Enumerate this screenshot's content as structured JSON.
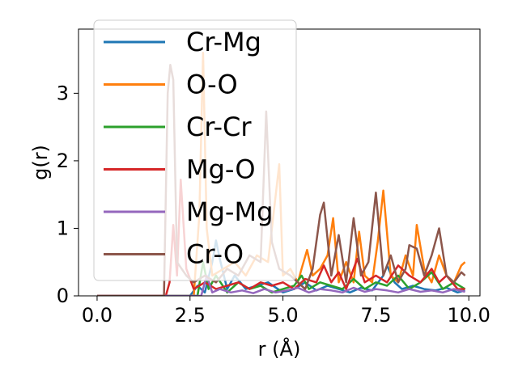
{
  "chart_data": {
    "type": "line",
    "title": "",
    "xlabel": "r (Å)",
    "ylabel": "g(r)",
    "xlim": [
      -0.5,
      10.3
    ],
    "ylim": [
      0,
      3.95
    ],
    "xticks": [
      0.0,
      2.5,
      5.0,
      7.5,
      10.0
    ],
    "xtick_labels": [
      "0.0",
      "2.5",
      "5.0",
      "7.5",
      "10.0"
    ],
    "yticks": [
      0,
      1,
      2,
      3
    ],
    "ytick_labels": [
      "0",
      "1",
      "2",
      "3"
    ],
    "grid": false,
    "legend_position": "upper-left",
    "series": [
      {
        "name": "Cr-Mg",
        "color": "#1f77b4",
        "x": [
          0.0,
          2.5,
          2.7,
          2.9,
          3.1,
          3.2,
          3.3,
          3.5,
          3.7,
          4.0,
          4.3,
          4.6,
          5.0,
          5.3,
          5.6,
          5.9,
          6.2,
          6.5,
          6.8,
          7.1,
          7.4,
          7.7,
          7.8,
          8.0,
          8.2,
          8.5,
          8.8,
          9.1,
          9.4,
          9.7,
          9.9
        ],
        "y": [
          0,
          0,
          0.15,
          0.05,
          0.5,
          0.82,
          0.55,
          0.1,
          0.3,
          0.1,
          0.15,
          0.2,
          0.05,
          0.1,
          0.2,
          0.08,
          0.15,
          0.1,
          0.05,
          0.12,
          0.08,
          0.3,
          0.45,
          0.2,
          0.1,
          0.15,
          0.1,
          0.08,
          0.12,
          0.05,
          0.08
        ]
      },
      {
        "name": "O-O",
        "color": "#ff7f0e",
        "x": [
          0.0,
          2.6,
          2.75,
          2.85,
          2.95,
          3.1,
          3.4,
          3.7,
          4.0,
          4.3,
          4.6,
          4.9,
          5.0,
          5.2,
          5.4,
          5.5,
          5.65,
          5.8,
          6.0,
          6.2,
          6.35,
          6.5,
          6.7,
          6.9,
          7.05,
          7.2,
          7.4,
          7.55,
          7.7,
          7.9,
          8.1,
          8.3,
          8.5,
          8.6,
          8.8,
          9.0,
          9.2,
          9.4,
          9.6,
          9.8,
          9.9
        ],
        "y": [
          0,
          0,
          1.2,
          3.6,
          1.0,
          0.3,
          0.4,
          0.5,
          0.3,
          0.6,
          0.5,
          1.95,
          0.3,
          0.4,
          0.2,
          0.4,
          0.68,
          0.3,
          0.4,
          0.6,
          1.15,
          0.2,
          0.5,
          0.2,
          0.95,
          0.3,
          0.2,
          0.8,
          1.56,
          0.3,
          0.2,
          0.6,
          0.3,
          1.05,
          0.4,
          0.2,
          0.6,
          0.3,
          0.2,
          0.45,
          0.5
        ]
      },
      {
        "name": "Cr-Cr",
        "color": "#2ca02c",
        "x": [
          0.0,
          2.7,
          2.85,
          3.0,
          3.2,
          3.5,
          3.8,
          4.1,
          4.4,
          4.7,
          5.0,
          5.3,
          5.5,
          5.7,
          6.0,
          6.3,
          6.6,
          6.9,
          7.2,
          7.5,
          7.8,
          8.1,
          8.4,
          8.7,
          9.0,
          9.3,
          9.6,
          9.9
        ],
        "y": [
          0,
          0,
          0.5,
          0.1,
          0.3,
          0.05,
          0.2,
          0.1,
          0.15,
          0.05,
          0.1,
          0.15,
          0.3,
          0.1,
          0.2,
          0.15,
          0.1,
          0.25,
          0.1,
          0.2,
          0.15,
          0.3,
          0.1,
          0.2,
          0.35,
          0.1,
          0.2,
          0.1
        ]
      },
      {
        "name": "Mg-O",
        "color": "#d62728",
        "x": [
          0.0,
          1.85,
          1.95,
          2.05,
          2.15,
          2.25,
          2.4,
          2.6,
          2.9,
          3.2,
          3.5,
          3.8,
          4.1,
          4.4,
          4.7,
          5.0,
          5.3,
          5.6,
          5.9,
          6.1,
          6.3,
          6.5,
          6.7,
          6.9,
          7.0,
          7.2,
          7.5,
          7.8,
          8.1,
          8.4,
          8.7,
          9.0,
          9.2,
          9.4,
          9.7,
          9.9
        ],
        "y": [
          0,
          0,
          0.2,
          1.05,
          0.3,
          1.72,
          0.4,
          0.1,
          0.2,
          0.1,
          0.15,
          0.2,
          0.1,
          0.2,
          0.15,
          0.2,
          0.1,
          0.25,
          0.2,
          0.45,
          0.2,
          0.35,
          0.1,
          0.4,
          0.55,
          0.2,
          0.3,
          0.2,
          0.45,
          0.3,
          0.2,
          0.4,
          0.2,
          0.3,
          0.1,
          0.1
        ]
      },
      {
        "name": "Mg-Mg",
        "color": "#9467bd",
        "x": [
          0.0,
          2.8,
          2.95,
          3.1,
          3.3,
          3.6,
          3.9,
          4.2,
          4.5,
          4.8,
          5.1,
          5.4,
          5.7,
          6.0,
          6.3,
          6.6,
          6.9,
          7.2,
          7.5,
          7.8,
          8.1,
          8.4,
          8.7,
          9.0,
          9.3,
          9.6,
          9.9
        ],
        "y": [
          0,
          0,
          0.3,
          0.05,
          0.1,
          0.05,
          0.08,
          0.04,
          0.1,
          0.05,
          0.08,
          0.12,
          0.05,
          0.1,
          0.08,
          0.05,
          0.12,
          0.06,
          0.1,
          0.08,
          0.05,
          0.1,
          0.06,
          0.08,
          0.05,
          0.1,
          0.06
        ]
      },
      {
        "name": "Cr-O",
        "color": "#8c564b",
        "x": [
          0.0,
          1.8,
          1.9,
          1.97,
          2.05,
          2.15,
          2.4,
          2.6,
          2.9,
          3.2,
          3.5,
          3.8,
          4.1,
          4.4,
          4.55,
          4.7,
          4.9,
          5.2,
          5.4,
          5.6,
          5.8,
          6.0,
          6.1,
          6.3,
          6.5,
          6.7,
          6.9,
          7.1,
          7.3,
          7.5,
          7.7,
          7.9,
          8.1,
          8.3,
          8.4,
          8.6,
          8.8,
          9.0,
          9.2,
          9.4,
          9.6,
          9.8,
          9.9
        ],
        "y": [
          0,
          0,
          3.0,
          3.42,
          3.2,
          0.5,
          0.3,
          0.2,
          0.3,
          0.2,
          0.4,
          0.3,
          0.6,
          0.5,
          2.73,
          0.8,
          0.4,
          0.3,
          0.2,
          0.1,
          0.4,
          1.2,
          1.38,
          0.3,
          0.9,
          0.2,
          1.15,
          0.3,
          0.5,
          1.53,
          0.3,
          0.6,
          0.2,
          0.4,
          0.75,
          0.7,
          0.3,
          0.6,
          1.0,
          0.3,
          0.2,
          0.35,
          0.3
        ]
      }
    ]
  }
}
